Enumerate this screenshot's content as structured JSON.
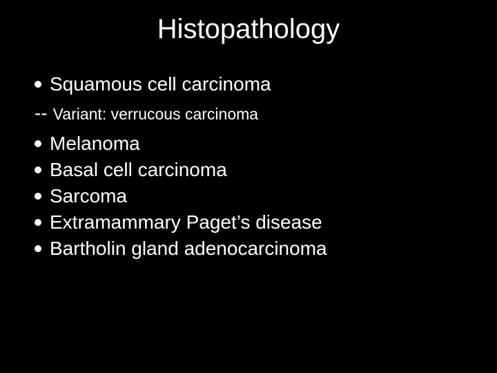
{
  "slide": {
    "title": "Histopathology",
    "title_fontsize": 40,
    "title_color": "#ffffff",
    "background_color": "#000000",
    "body_color": "#ffffff",
    "bullet_color": "#ffffff",
    "main_fontsize": 28,
    "sub_fontsize": 23,
    "dash_fontsize": 28,
    "items": [
      {
        "type": "bullet",
        "text": "Squamous cell carcinoma"
      },
      {
        "type": "dash",
        "dash": "--",
        "text": "Variant: verrucous carcinoma"
      },
      {
        "type": "bullet",
        "text": "Melanoma"
      },
      {
        "type": "bullet",
        "text": "Basal cell carcinoma"
      },
      {
        "type": "bullet",
        "text": "Sarcoma"
      },
      {
        "type": "bullet",
        "text": "Extramammary Paget’s disease"
      },
      {
        "type": "bullet",
        "text": "Bartholin gland adenocarcinoma"
      }
    ]
  }
}
